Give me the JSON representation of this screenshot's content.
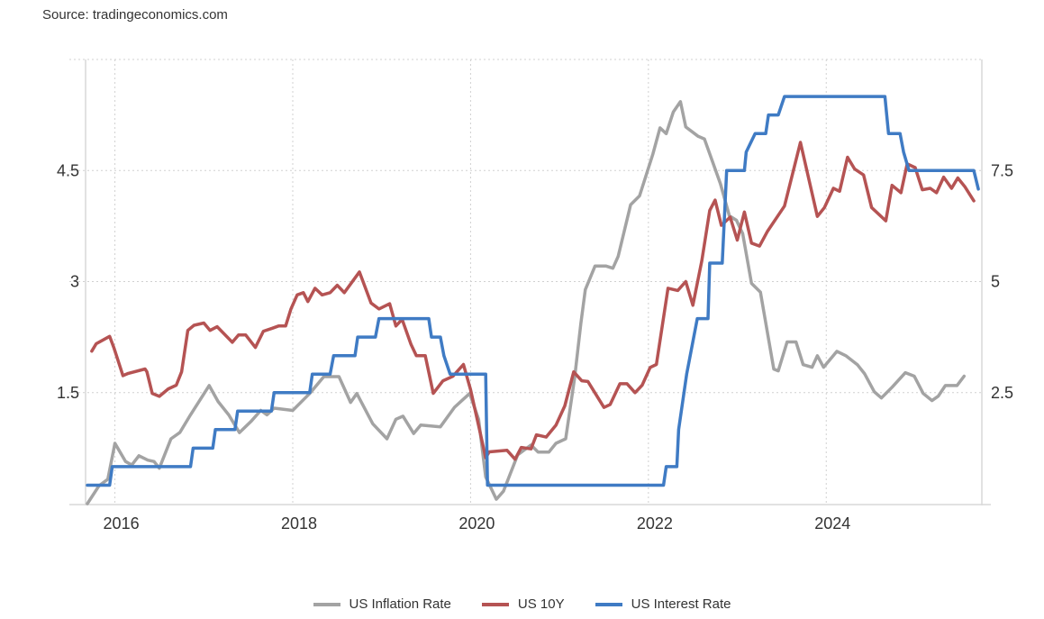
{
  "source": "Source: tradingeconomics.com",
  "chart_data": {
    "type": "line",
    "title": "",
    "xlabel": "",
    "ylabel": "",
    "xlim": [
      2015.67,
      2025.75
    ],
    "x_ticks": [
      2016,
      2018,
      2020,
      2022,
      2024
    ],
    "x_tick_labels": [
      "2016",
      "2018",
      "2020",
      "2022",
      "2024"
    ],
    "ylim_left": [
      0,
      6
    ],
    "y_ticks_left": [
      1.5,
      3,
      4.5
    ],
    "y_tick_labels_left": [
      "1.5",
      "3",
      "4.5"
    ],
    "ylim_right": [
      0,
      10
    ],
    "y_ticks_right": [
      2.5,
      5,
      7.5
    ],
    "y_tick_labels_right": [
      "2.5",
      "5",
      "7.5"
    ],
    "grid": true,
    "legend_position": "bottom-center",
    "series": [
      {
        "name": "US Inflation Rate",
        "axis": "right",
        "color": "#a3a3a3",
        "points": [
          [
            2015.69,
            0.0
          ],
          [
            2015.82,
            0.4
          ],
          [
            2015.92,
            0.55
          ],
          [
            2016.0,
            1.36
          ],
          [
            2016.12,
            0.95
          ],
          [
            2016.19,
            0.87
          ],
          [
            2016.27,
            1.08
          ],
          [
            2016.37,
            0.98
          ],
          [
            2016.44,
            0.95
          ],
          [
            2016.5,
            0.8
          ],
          [
            2016.63,
            1.46
          ],
          [
            2016.73,
            1.6
          ],
          [
            2016.85,
            2.0
          ],
          [
            2017.06,
            2.66
          ],
          [
            2017.16,
            2.3
          ],
          [
            2017.28,
            2.0
          ],
          [
            2017.4,
            1.6
          ],
          [
            2017.53,
            1.85
          ],
          [
            2017.64,
            2.1
          ],
          [
            2017.71,
            2.0
          ],
          [
            2017.79,
            2.15
          ],
          [
            2018.0,
            2.1
          ],
          [
            2018.2,
            2.5
          ],
          [
            2018.35,
            2.86
          ],
          [
            2018.52,
            2.86
          ],
          [
            2018.65,
            2.28
          ],
          [
            2018.72,
            2.48
          ],
          [
            2018.9,
            1.8
          ],
          [
            2019.06,
            1.46
          ],
          [
            2019.16,
            1.9
          ],
          [
            2019.24,
            1.97
          ],
          [
            2019.36,
            1.58
          ],
          [
            2019.44,
            1.77
          ],
          [
            2019.66,
            1.73
          ],
          [
            2019.82,
            2.17
          ],
          [
            2019.99,
            2.48
          ],
          [
            2020.09,
            1.9
          ],
          [
            2020.17,
            0.6
          ],
          [
            2020.29,
            0.1
          ],
          [
            2020.37,
            0.28
          ],
          [
            2020.53,
            1.1
          ],
          [
            2020.68,
            1.32
          ],
          [
            2020.76,
            1.16
          ],
          [
            2020.88,
            1.16
          ],
          [
            2020.96,
            1.36
          ],
          [
            2021.07,
            1.46
          ],
          [
            2021.17,
            2.83
          ],
          [
            2021.24,
            4.05
          ],
          [
            2021.29,
            4.82
          ],
          [
            2021.4,
            5.35
          ],
          [
            2021.52,
            5.35
          ],
          [
            2021.6,
            5.3
          ],
          [
            2021.66,
            5.57
          ],
          [
            2021.8,
            6.73
          ],
          [
            2021.9,
            6.93
          ],
          [
            2022.05,
            7.87
          ],
          [
            2022.13,
            8.46
          ],
          [
            2022.2,
            8.33
          ],
          [
            2022.28,
            8.82
          ],
          [
            2022.36,
            9.05
          ],
          [
            2022.42,
            8.48
          ],
          [
            2022.56,
            8.27
          ],
          [
            2022.63,
            8.21
          ],
          [
            2022.81,
            7.2
          ],
          [
            2022.91,
            6.48
          ],
          [
            2022.99,
            6.38
          ],
          [
            2023.06,
            6.08
          ],
          [
            2023.16,
            4.96
          ],
          [
            2023.26,
            4.76
          ],
          [
            2023.41,
            3.03
          ],
          [
            2023.46,
            2.99
          ],
          [
            2023.56,
            3.64
          ],
          [
            2023.66,
            3.64
          ],
          [
            2023.74,
            3.13
          ],
          [
            2023.84,
            3.07
          ],
          [
            2023.9,
            3.33
          ],
          [
            2023.97,
            3.07
          ],
          [
            2024.12,
            3.43
          ],
          [
            2024.22,
            3.33
          ],
          [
            2024.35,
            3.13
          ],
          [
            2024.43,
            2.93
          ],
          [
            2024.54,
            2.52
          ],
          [
            2024.62,
            2.38
          ],
          [
            2024.74,
            2.62
          ],
          [
            2024.89,
            2.95
          ],
          [
            2024.99,
            2.87
          ],
          [
            2025.09,
            2.48
          ],
          [
            2025.19,
            2.32
          ],
          [
            2025.26,
            2.42
          ],
          [
            2025.34,
            2.66
          ],
          [
            2025.47,
            2.66
          ],
          [
            2025.55,
            2.87
          ]
        ]
      },
      {
        "name": "US 10Y",
        "axis": "left",
        "color": "#b55353",
        "points": [
          [
            2015.74,
            2.06
          ],
          [
            2015.79,
            2.16
          ],
          [
            2015.94,
            2.26
          ],
          [
            2015.99,
            2.1
          ],
          [
            2016.09,
            1.73
          ],
          [
            2016.15,
            1.76
          ],
          [
            2016.34,
            1.82
          ],
          [
            2016.36,
            1.78
          ],
          [
            2016.42,
            1.49
          ],
          [
            2016.5,
            1.45
          ],
          [
            2016.6,
            1.55
          ],
          [
            2016.69,
            1.6
          ],
          [
            2016.75,
            1.78
          ],
          [
            2016.82,
            2.34
          ],
          [
            2016.89,
            2.41
          ],
          [
            2017.0,
            2.44
          ],
          [
            2017.07,
            2.34
          ],
          [
            2017.15,
            2.39
          ],
          [
            2017.32,
            2.18
          ],
          [
            2017.39,
            2.28
          ],
          [
            2017.47,
            2.28
          ],
          [
            2017.58,
            2.11
          ],
          [
            2017.67,
            2.33
          ],
          [
            2017.77,
            2.37
          ],
          [
            2017.84,
            2.4
          ],
          [
            2017.92,
            2.4
          ],
          [
            2017.98,
            2.63
          ],
          [
            2018.05,
            2.82
          ],
          [
            2018.12,
            2.85
          ],
          [
            2018.17,
            2.73
          ],
          [
            2018.25,
            2.91
          ],
          [
            2018.33,
            2.82
          ],
          [
            2018.42,
            2.85
          ],
          [
            2018.5,
            2.95
          ],
          [
            2018.58,
            2.85
          ],
          [
            2018.75,
            3.13
          ],
          [
            2018.88,
            2.71
          ],
          [
            2018.97,
            2.63
          ],
          [
            2019.09,
            2.7
          ],
          [
            2019.16,
            2.4
          ],
          [
            2019.23,
            2.49
          ],
          [
            2019.33,
            2.15
          ],
          [
            2019.39,
            2.0
          ],
          [
            2019.49,
            2.0
          ],
          [
            2019.58,
            1.49
          ],
          [
            2019.69,
            1.66
          ],
          [
            2019.8,
            1.72
          ],
          [
            2019.92,
            1.88
          ],
          [
            2020.0,
            1.54
          ],
          [
            2020.1,
            1.0
          ],
          [
            2020.17,
            0.62
          ],
          [
            2020.21,
            0.7
          ],
          [
            2020.41,
            0.72
          ],
          [
            2020.5,
            0.6
          ],
          [
            2020.57,
            0.76
          ],
          [
            2020.68,
            0.74
          ],
          [
            2020.74,
            0.93
          ],
          [
            2020.85,
            0.9
          ],
          [
            2020.96,
            1.06
          ],
          [
            2021.06,
            1.32
          ],
          [
            2021.16,
            1.78
          ],
          [
            2021.25,
            1.66
          ],
          [
            2021.32,
            1.65
          ],
          [
            2021.5,
            1.3
          ],
          [
            2021.57,
            1.34
          ],
          [
            2021.68,
            1.62
          ],
          [
            2021.76,
            1.62
          ],
          [
            2021.85,
            1.5
          ],
          [
            2021.93,
            1.6
          ],
          [
            2022.02,
            1.84
          ],
          [
            2022.09,
            1.88
          ],
          [
            2022.22,
            2.91
          ],
          [
            2022.33,
            2.88
          ],
          [
            2022.42,
            3.0
          ],
          [
            2022.5,
            2.68
          ],
          [
            2022.6,
            3.28
          ],
          [
            2022.69,
            3.96
          ],
          [
            2022.75,
            4.1
          ],
          [
            2022.82,
            3.76
          ],
          [
            2022.92,
            3.87
          ],
          [
            2023.0,
            3.56
          ],
          [
            2023.08,
            3.94
          ],
          [
            2023.16,
            3.52
          ],
          [
            2023.25,
            3.48
          ],
          [
            2023.34,
            3.68
          ],
          [
            2023.53,
            4.02
          ],
          [
            2023.71,
            4.88
          ],
          [
            2023.9,
            3.88
          ],
          [
            2023.98,
            4.0
          ],
          [
            2024.08,
            4.26
          ],
          [
            2024.15,
            4.22
          ],
          [
            2024.24,
            4.68
          ],
          [
            2024.32,
            4.52
          ],
          [
            2024.42,
            4.44
          ],
          [
            2024.51,
            4.0
          ],
          [
            2024.67,
            3.82
          ],
          [
            2024.74,
            4.3
          ],
          [
            2024.84,
            4.2
          ],
          [
            2024.91,
            4.59
          ],
          [
            2025.0,
            4.54
          ],
          [
            2025.08,
            4.24
          ],
          [
            2025.17,
            4.26
          ],
          [
            2025.24,
            4.2
          ],
          [
            2025.32,
            4.41
          ],
          [
            2025.41,
            4.26
          ],
          [
            2025.48,
            4.4
          ],
          [
            2025.56,
            4.28
          ],
          [
            2025.66,
            4.09
          ]
        ]
      },
      {
        "name": "US Interest Rate",
        "axis": "left",
        "color": "#3f7bc4",
        "points": [
          [
            2015.69,
            0.25
          ],
          [
            2015.94,
            0.25
          ],
          [
            2015.97,
            0.5
          ],
          [
            2016.85,
            0.5
          ],
          [
            2016.88,
            0.75
          ],
          [
            2017.1,
            0.75
          ],
          [
            2017.13,
            1.0
          ],
          [
            2017.35,
            1.0
          ],
          [
            2017.38,
            1.25
          ],
          [
            2017.76,
            1.25
          ],
          [
            2017.79,
            1.5
          ],
          [
            2018.19,
            1.5
          ],
          [
            2018.22,
            1.75
          ],
          [
            2018.42,
            1.75
          ],
          [
            2018.46,
            2.0
          ],
          [
            2018.7,
            2.0
          ],
          [
            2018.73,
            2.25
          ],
          [
            2018.93,
            2.25
          ],
          [
            2018.97,
            2.5
          ],
          [
            2019.53,
            2.5
          ],
          [
            2019.56,
            2.25
          ],
          [
            2019.66,
            2.25
          ],
          [
            2019.7,
            2.0
          ],
          [
            2019.77,
            1.75
          ],
          [
            2020.17,
            1.75
          ],
          [
            2020.19,
            0.25
          ],
          [
            2022.17,
            0.25
          ],
          [
            2022.2,
            0.5
          ],
          [
            2022.32,
            0.5
          ],
          [
            2022.34,
            1.0
          ],
          [
            2022.43,
            1.75
          ],
          [
            2022.55,
            2.5
          ],
          [
            2022.67,
            2.5
          ],
          [
            2022.69,
            3.25
          ],
          [
            2022.83,
            3.25
          ],
          [
            2022.88,
            4.5
          ],
          [
            2023.08,
            4.5
          ],
          [
            2023.1,
            4.75
          ],
          [
            2023.2,
            5.0
          ],
          [
            2023.32,
            5.0
          ],
          [
            2023.35,
            5.25
          ],
          [
            2023.46,
            5.25
          ],
          [
            2023.53,
            5.5
          ],
          [
            2024.66,
            5.5
          ],
          [
            2024.7,
            5.0
          ],
          [
            2024.83,
            5.0
          ],
          [
            2024.87,
            4.75
          ],
          [
            2024.93,
            4.5
          ],
          [
            2025.66,
            4.5
          ],
          [
            2025.71,
            4.25
          ]
        ]
      }
    ]
  }
}
